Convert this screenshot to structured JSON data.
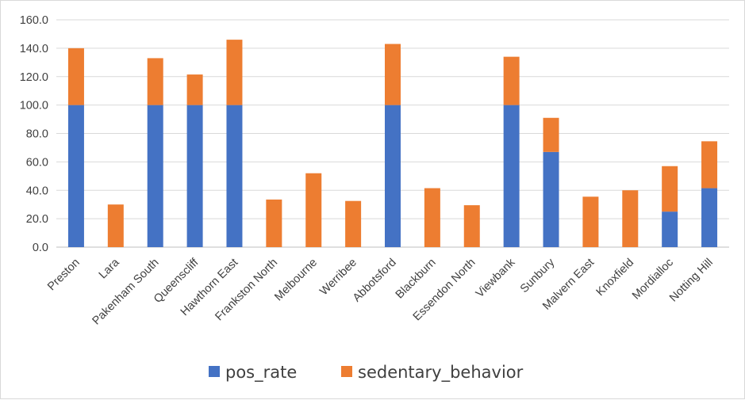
{
  "chart_data": {
    "type": "bar",
    "stacked": true,
    "title": "",
    "xlabel": "",
    "ylabel": "",
    "ylim": [
      0,
      160
    ],
    "yticks": [
      "0.0",
      "20.0",
      "40.0",
      "60.0",
      "80.0",
      "100.0",
      "120.0",
      "140.0",
      "160.0"
    ],
    "grid": true,
    "legend_position": "bottom",
    "categories": [
      "Preston",
      "Lara",
      "Pakenham South",
      "Queenscliff",
      "Hawthorn East",
      "Frankston North",
      "Melbourne",
      "Werribee",
      "Abbotsford",
      "Blackburn",
      "Essendon North",
      "Viewbank",
      "Sunbury",
      "Malvern East",
      "Knoxfield",
      "Mordialloc",
      "Notting Hill"
    ],
    "series": [
      {
        "name": "pos_rate",
        "color": "#4472C4",
        "values": [
          100,
          0,
          100,
          100,
          100,
          0,
          0,
          0,
          100,
          0,
          0,
          100,
          67,
          0,
          0,
          25,
          41.5
        ]
      },
      {
        "name": "sedentary_behavior",
        "color": "#ED7D31",
        "values": [
          40,
          30,
          33,
          21.5,
          46,
          33.5,
          52,
          32.5,
          43,
          41.5,
          29.5,
          34,
          24,
          35.5,
          40,
          32,
          33
        ]
      }
    ]
  }
}
